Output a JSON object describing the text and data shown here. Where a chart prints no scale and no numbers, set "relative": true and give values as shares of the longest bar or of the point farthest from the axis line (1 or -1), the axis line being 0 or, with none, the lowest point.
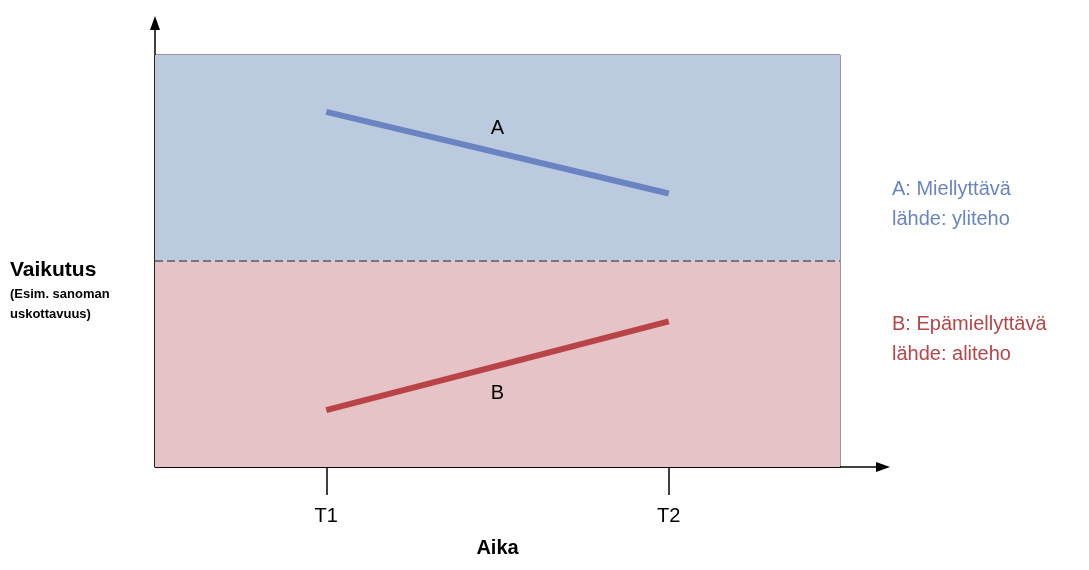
{
  "chart_data": {
    "type": "line",
    "relative": true,
    "xlabel": "Aika",
    "ylabel": "Vaikutus",
    "categories": [
      "T1",
      "T2"
    ],
    "series": [
      {
        "name": "A",
        "color": "#6a84c2",
        "values": [
          1,
          0.77
        ]
      },
      {
        "name": "B",
        "color": "#b84448",
        "values": [
          0.16,
          0.41
        ]
      }
    ],
    "ref_lines": [
      {
        "axis": "y",
        "value": 0.58,
        "color": "#777777",
        "line_style": "dashed"
      }
    ],
    "bands": [
      {
        "axis": "y",
        "from": 0.58,
        "to": 1.16,
        "color": "#bccae0"
      },
      {
        "axis": "y",
        "from": 0,
        "to": 0.58,
        "color": "#e6c3c6"
      }
    ],
    "annotations": [
      "(Esim. sanoman\nuskottavuus)",
      "A: Miellyttävä\nlähde: yliteho",
      "B: Epämiellyttävä\nlähde: aliteho"
    ],
    "grid": false,
    "legend": false,
    "marker": "none",
    "line_style": "solid"
  }
}
